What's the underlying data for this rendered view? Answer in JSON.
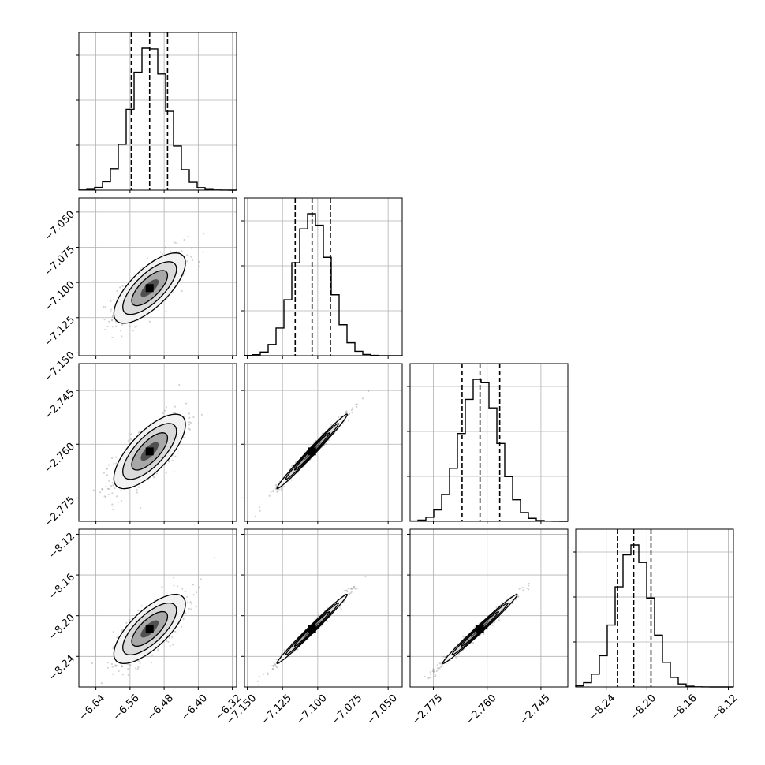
{
  "chart_data": {
    "type": "corner",
    "parameters": [
      {
        "index": 0,
        "range": [
          -6.68,
          -6.31
        ],
        "ticks": [
          -6.64,
          -6.56,
          -6.48,
          -6.4,
          -6.32
        ],
        "tick_labels": [
          "−6.64",
          "−6.56",
          "−6.48",
          "−6.40",
          "−6.32"
        ],
        "quantiles": [
          -6.557,
          -6.514,
          -6.472
        ],
        "mean": -6.514,
        "std": 0.042
      },
      {
        "index": 1,
        "range": [
          -7.152,
          -7.04
        ],
        "ticks": [
          -7.15,
          -7.125,
          -7.1,
          -7.075,
          -7.05
        ],
        "tick_labels": [
          "−7.150",
          "−7.125",
          "−7.100",
          "−7.075",
          "−7.050"
        ],
        "quantiles": [
          -7.116,
          -7.104,
          -7.091
        ],
        "mean": -7.104,
        "std": 0.0125
      },
      {
        "index": 2,
        "range": [
          -2.7815,
          -2.7375
        ],
        "ticks": [
          -2.775,
          -2.76,
          -2.745
        ],
        "tick_labels": [
          "−2.775",
          "−2.760",
          "−2.745"
        ],
        "quantiles": [
          -2.767,
          -2.762,
          -2.7565
        ],
        "mean": -2.762,
        "std": 0.0052
      },
      {
        "index": 3,
        "range": [
          -8.27,
          -8.115
        ],
        "ticks": [
          -8.24,
          -8.2,
          -8.16,
          -8.12
        ],
        "tick_labels": [
          "−8.24",
          "−8.20",
          "−8.16",
          "−8.12"
        ],
        "quantiles": [
          -8.229,
          -8.213,
          -8.196
        ],
        "mean": -8.213,
        "std": 0.017
      }
    ],
    "left_axis_labels": [
      {
        "row": 1,
        "ticks": [
          -7.15,
          -7.125,
          -7.1,
          -7.075,
          -7.05
        ],
        "tick_labels": [
          "−7.150",
          "−7.125",
          "−7.100",
          "−7.075",
          "−7.050"
        ]
      },
      {
        "row": 2,
        "ticks": [
          -2.775,
          -2.76,
          -2.745
        ],
        "tick_labels": [
          "−2.775",
          "−2.760",
          "−2.745"
        ]
      },
      {
        "row": 3,
        "ticks": [
          -8.24,
          -8.2,
          -8.16,
          -8.12
        ],
        "tick_labels": [
          "−8.24",
          "−8.20",
          "−8.16",
          "−8.12"
        ]
      }
    ],
    "correlations": [
      {
        "pair": [
          0,
          1
        ],
        "rho": 0.72
      },
      {
        "pair": [
          0,
          2
        ],
        "rho": 0.72
      },
      {
        "pair": [
          0,
          3
        ],
        "rho": 0.72
      },
      {
        "pair": [
          1,
          2
        ],
        "rho": 0.99
      },
      {
        "pair": [
          1,
          3
        ],
        "rho": 0.99
      },
      {
        "pair": [
          2,
          3
        ],
        "rho": 0.99
      }
    ],
    "grid": true,
    "histogram_bins": 20,
    "title": "",
    "colors": {
      "line": "#000000",
      "grid": "#b0b0b0",
      "points": "#7f7f7f"
    }
  }
}
